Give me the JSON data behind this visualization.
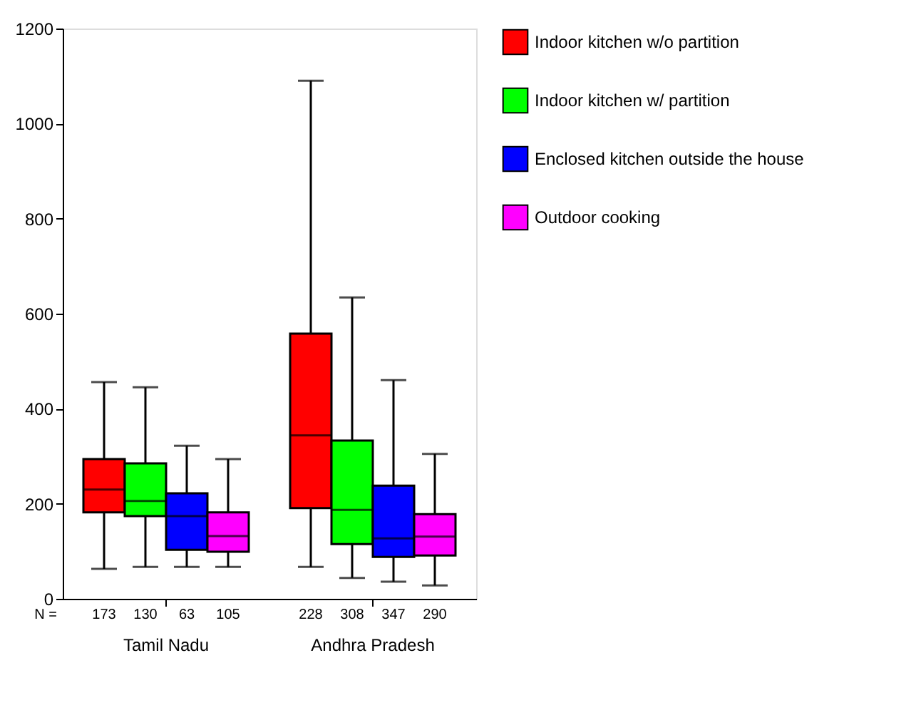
{
  "chart_data": {
    "type": "box",
    "categories": [
      "Tamil Nadu",
      "Andhra Pradesh"
    ],
    "series": [
      {
        "name": "Indoor kitchen w/o partition",
        "color": "#ff0000",
        "boxes": [
          {
            "low": 63,
            "q1": 182,
            "median": 230,
            "q3": 294,
            "high": 456
          },
          {
            "low": 67,
            "q1": 191,
            "median": 344,
            "q3": 558,
            "high": 1090
          }
        ]
      },
      {
        "name": "Indoor kitchen w/ partition",
        "color": "#00ff00",
        "boxes": [
          {
            "low": 67,
            "q1": 174,
            "median": 206,
            "q3": 285,
            "high": 445
          },
          {
            "low": 44,
            "q1": 115,
            "median": 187,
            "q3": 333,
            "high": 634
          }
        ]
      },
      {
        "name": "Enclosed kitchen outside the house",
        "color": "#0000ff",
        "boxes": [
          {
            "low": 67,
            "q1": 103,
            "median": 174,
            "q3": 222,
            "high": 322
          },
          {
            "low": 36,
            "q1": 88,
            "median": 127,
            "q3": 238,
            "high": 460
          }
        ]
      },
      {
        "name": "Outdoor cooking",
        "color": "#ff00ff",
        "boxes": [
          {
            "low": 67,
            "q1": 99,
            "median": 132,
            "q3": 182,
            "high": 294
          },
          {
            "low": 28,
            "q1": 91,
            "median": 131,
            "q3": 178,
            "high": 305
          }
        ]
      }
    ],
    "annotations": [
      "N =",
      "173",
      "228",
      "130",
      "308",
      "63",
      "347",
      "105",
      "290"
    ],
    "ylim": [
      0,
      1200
    ],
    "yticks": [
      0,
      200,
      400,
      600,
      800,
      1000,
      1200
    ],
    "grid": false,
    "legend": "right"
  }
}
